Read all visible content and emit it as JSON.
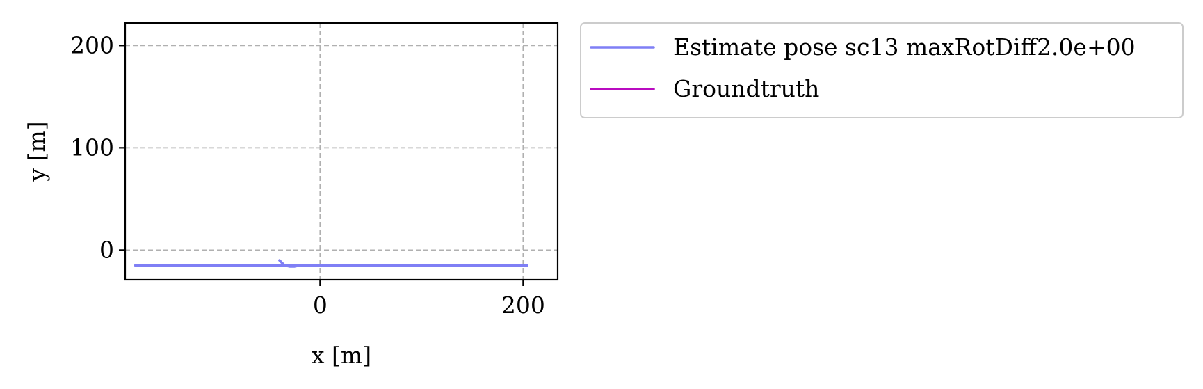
{
  "chart_data": {
    "type": "line",
    "title": "",
    "xlabel": "x [m]",
    "ylabel": "y [m]",
    "xlim": [
      -192,
      234
    ],
    "ylim": [
      -29,
      222
    ],
    "xticks": [
      0,
      200
    ],
    "yticks": [
      0,
      100,
      200
    ],
    "xtick_labels": [
      "0",
      "200"
    ],
    "ytick_labels": [
      "0",
      "100",
      "200"
    ],
    "grid": true,
    "legend_position": "outside-right-top",
    "series": [
      {
        "name": "Estimate pose sc13 maxRotDiff2.0e+00",
        "color": "#7f7ff5",
        "x": [
          -40,
          -35,
          -30,
          -25,
          -20,
          -15,
          -10,
          0,
          20,
          40,
          60,
          80,
          100,
          120,
          140,
          160,
          180,
          195,
          202,
          204,
          202,
          195,
          185,
          178,
          175,
          150,
          120,
          90,
          60,
          30,
          0,
          -30,
          -62,
          -90,
          -125,
          -140,
          -155,
          -165,
          -172,
          -175,
          -178,
          -182,
          -168,
          -150,
          -130,
          -115,
          -108,
          -110,
          -116,
          -122,
          -128,
          -135,
          -140,
          -142,
          -138,
          -130
        ],
        "y": [
          -10,
          -15,
          -16,
          -16,
          -15,
          -15,
          -15,
          -15,
          -15,
          -15,
          -15,
          -15,
          -15,
          -15,
          -15,
          -15,
          -15,
          -15,
          -15,
          -15,
          -15,
          -15,
          -15,
          -15,
          -15,
          -15,
          -15,
          -15,
          -15,
          -15,
          -15,
          -15,
          -15,
          -15,
          -15,
          -15,
          -15,
          -15,
          -15,
          -15,
          -15,
          -15,
          -15,
          -15,
          -15,
          -15,
          -15,
          -15,
          -15,
          -15,
          -15,
          -15,
          -15,
          -15,
          -15,
          -15
        ]
      },
      {
        "name": "Groundtruth",
        "color": "#b90cc0",
        "x": [],
        "y": []
      }
    ]
  }
}
